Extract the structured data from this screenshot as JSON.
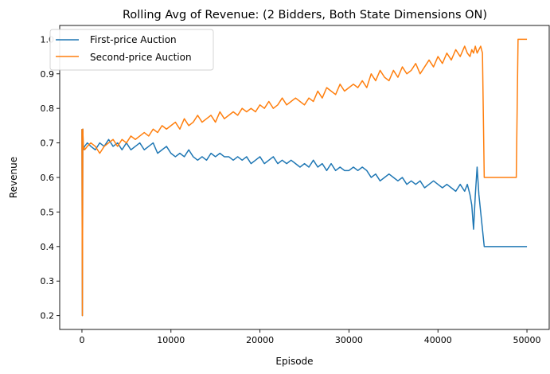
{
  "chart_data": {
    "type": "line",
    "title": "Rolling Avg of Revenue: (2 Bidders, Both State Dimensions ON)",
    "xlabel": "Episode",
    "ylabel": "Revenue",
    "xlim": [
      -2500,
      52500
    ],
    "ylim": [
      0.16,
      1.04
    ],
    "xticks": [
      0,
      10000,
      20000,
      30000,
      40000,
      50000
    ],
    "xtick_labels": [
      "0",
      "10000",
      "20000",
      "30000",
      "40000",
      "50000"
    ],
    "yticks": [
      0.2,
      0.3,
      0.4,
      0.5,
      0.6,
      0.7,
      0.8,
      0.9,
      1.0
    ],
    "ytick_labels": [
      "0.2",
      "0.3",
      "0.4",
      "0.5",
      "0.6",
      "0.7",
      "0.8",
      "0.9",
      "1.0"
    ],
    "grid": false,
    "legend_position": "top-left",
    "series": [
      {
        "name": "First-price Auction",
        "color": "#1f77b4",
        "x": [
          0,
          50,
          100,
          150,
          300,
          600,
          1000,
          1500,
          2000,
          2500,
          3000,
          3500,
          4000,
          4500,
          5000,
          5500,
          6000,
          6500,
          7000,
          7500,
          8000,
          8500,
          9000,
          9500,
          10000,
          10500,
          11000,
          11500,
          12000,
          12500,
          13000,
          13500,
          14000,
          14500,
          15000,
          15500,
          16000,
          16500,
          17000,
          17500,
          18000,
          18500,
          19000,
          19500,
          20000,
          20500,
          21000,
          21500,
          22000,
          22500,
          23000,
          23500,
          24000,
          24500,
          25000,
          25500,
          26000,
          26500,
          27000,
          27500,
          28000,
          28500,
          29000,
          29500,
          30000,
          30500,
          31000,
          31500,
          32000,
          32500,
          33000,
          33500,
          34000,
          34500,
          35000,
          35500,
          36000,
          36500,
          37000,
          37500,
          38000,
          38500,
          39000,
          39500,
          40000,
          40500,
          41000,
          41500,
          42000,
          42500,
          43000,
          43300,
          43600,
          43800,
          44000,
          44200,
          44400,
          44600,
          44800,
          45000,
          45200,
          46000,
          48000,
          50000
        ],
        "y": [
          0.74,
          0.2,
          0.74,
          0.68,
          0.69,
          0.7,
          0.69,
          0.68,
          0.7,
          0.69,
          0.71,
          0.69,
          0.7,
          0.68,
          0.7,
          0.68,
          0.69,
          0.7,
          0.68,
          0.69,
          0.7,
          0.67,
          0.68,
          0.69,
          0.67,
          0.66,
          0.67,
          0.66,
          0.68,
          0.66,
          0.65,
          0.66,
          0.65,
          0.67,
          0.66,
          0.67,
          0.66,
          0.66,
          0.65,
          0.66,
          0.65,
          0.66,
          0.64,
          0.65,
          0.66,
          0.64,
          0.65,
          0.66,
          0.64,
          0.65,
          0.64,
          0.65,
          0.64,
          0.63,
          0.64,
          0.63,
          0.65,
          0.63,
          0.64,
          0.62,
          0.64,
          0.62,
          0.63,
          0.62,
          0.62,
          0.63,
          0.62,
          0.63,
          0.62,
          0.6,
          0.61,
          0.59,
          0.6,
          0.61,
          0.6,
          0.59,
          0.6,
          0.58,
          0.59,
          0.58,
          0.59,
          0.57,
          0.58,
          0.59,
          0.58,
          0.57,
          0.58,
          0.57,
          0.56,
          0.58,
          0.56,
          0.58,
          0.55,
          0.52,
          0.45,
          0.55,
          0.63,
          0.55,
          0.5,
          0.45,
          0.4,
          0.4,
          0.4,
          0.4
        ]
      },
      {
        "name": "Second-price Auction",
        "color": "#ff7f0e",
        "x": [
          0,
          50,
          100,
          150,
          300,
          600,
          1000,
          1500,
          2000,
          2500,
          3000,
          3500,
          4000,
          4500,
          5000,
          5500,
          6000,
          6500,
          7000,
          7500,
          8000,
          8500,
          9000,
          9500,
          10000,
          10500,
          11000,
          11500,
          12000,
          12500,
          13000,
          13500,
          14000,
          14500,
          15000,
          15500,
          16000,
          16500,
          17000,
          17500,
          18000,
          18500,
          19000,
          19500,
          20000,
          20500,
          21000,
          21500,
          22000,
          22500,
          23000,
          23500,
          24000,
          24500,
          25000,
          25500,
          26000,
          26500,
          27000,
          27500,
          28000,
          28500,
          29000,
          29500,
          30000,
          30500,
          31000,
          31500,
          32000,
          32500,
          33000,
          33500,
          34000,
          34500,
          35000,
          35500,
          36000,
          36500,
          37000,
          37500,
          38000,
          38500,
          39000,
          39500,
          40000,
          40500,
          41000,
          41500,
          42000,
          42500,
          43000,
          43300,
          43600,
          43800,
          44000,
          44200,
          44400,
          44600,
          44800,
          45000,
          45200,
          46000,
          47000,
          48000,
          48800,
          49000,
          50000
        ],
        "y": [
          0.74,
          0.2,
          0.74,
          0.69,
          0.68,
          0.69,
          0.7,
          0.69,
          0.67,
          0.69,
          0.7,
          0.71,
          0.69,
          0.71,
          0.7,
          0.72,
          0.71,
          0.72,
          0.73,
          0.72,
          0.74,
          0.73,
          0.75,
          0.74,
          0.75,
          0.76,
          0.74,
          0.77,
          0.75,
          0.76,
          0.78,
          0.76,
          0.77,
          0.78,
          0.76,
          0.79,
          0.77,
          0.78,
          0.79,
          0.78,
          0.8,
          0.79,
          0.8,
          0.79,
          0.81,
          0.8,
          0.82,
          0.8,
          0.81,
          0.83,
          0.81,
          0.82,
          0.83,
          0.82,
          0.81,
          0.83,
          0.82,
          0.85,
          0.83,
          0.86,
          0.85,
          0.84,
          0.87,
          0.85,
          0.86,
          0.87,
          0.86,
          0.88,
          0.86,
          0.9,
          0.88,
          0.91,
          0.89,
          0.88,
          0.91,
          0.89,
          0.92,
          0.9,
          0.91,
          0.93,
          0.9,
          0.92,
          0.94,
          0.92,
          0.95,
          0.93,
          0.96,
          0.94,
          0.97,
          0.95,
          0.98,
          0.96,
          0.95,
          0.97,
          0.96,
          0.98,
          0.96,
          0.97,
          0.98,
          0.96,
          0.6,
          0.6,
          0.6,
          0.6,
          0.6,
          1.0,
          1.0
        ]
      }
    ]
  }
}
